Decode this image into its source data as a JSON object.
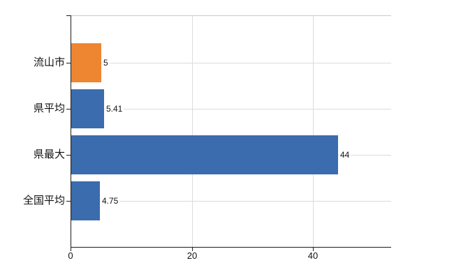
{
  "chart_data": {
    "type": "bar",
    "orientation": "horizontal",
    "title": "",
    "categories": [
      "流山市",
      "県平均",
      "県最大",
      "全国平均"
    ],
    "values": [
      5,
      5.41,
      44,
      4.75
    ],
    "value_labels": [
      "5",
      "5.41",
      "44",
      "4.75"
    ],
    "bar_colors": [
      "#ee8531",
      "#3a6cae",
      "#3a6cae",
      "#3a6cae"
    ],
    "xticks": [
      "0",
      "20",
      "40"
    ],
    "xtick_values": [
      0,
      20,
      40
    ],
    "xlim": [
      0,
      52.9
    ],
    "grid": true,
    "legend_position": "none",
    "background": "#ffffff"
  },
  "colors": {
    "bar_orange": "#ee8531",
    "bar_blue": "#3a6cae",
    "gridline": "#dcdcdc",
    "row_gridline": "#d9dcd9",
    "top_spine": "#c9c9c9",
    "axis": "#1a1a1a",
    "text": "#111111"
  }
}
